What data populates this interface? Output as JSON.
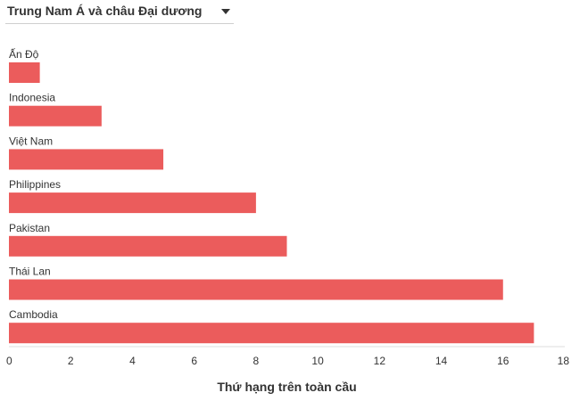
{
  "region_select": {
    "selected": "Trung Nam Á và châu Đại dương",
    "icon": "chevron-down-icon"
  },
  "chart_data": {
    "type": "bar",
    "orientation": "horizontal",
    "categories": [
      "Ấn Độ",
      "Indonesia",
      "Việt Nam",
      "Philippines",
      "Pakistan",
      "Thái Lan",
      "Cambodia"
    ],
    "values": [
      1,
      3,
      5,
      8,
      9,
      16,
      17
    ],
    "xlabel": "Thứ hạng trên toàn cầu",
    "ylabel": "",
    "xlim": [
      0,
      18
    ],
    "xticks": [
      0,
      2,
      4,
      6,
      8,
      10,
      12,
      14,
      16,
      18
    ],
    "grid": false,
    "bar_color": "#eb5c5c"
  }
}
